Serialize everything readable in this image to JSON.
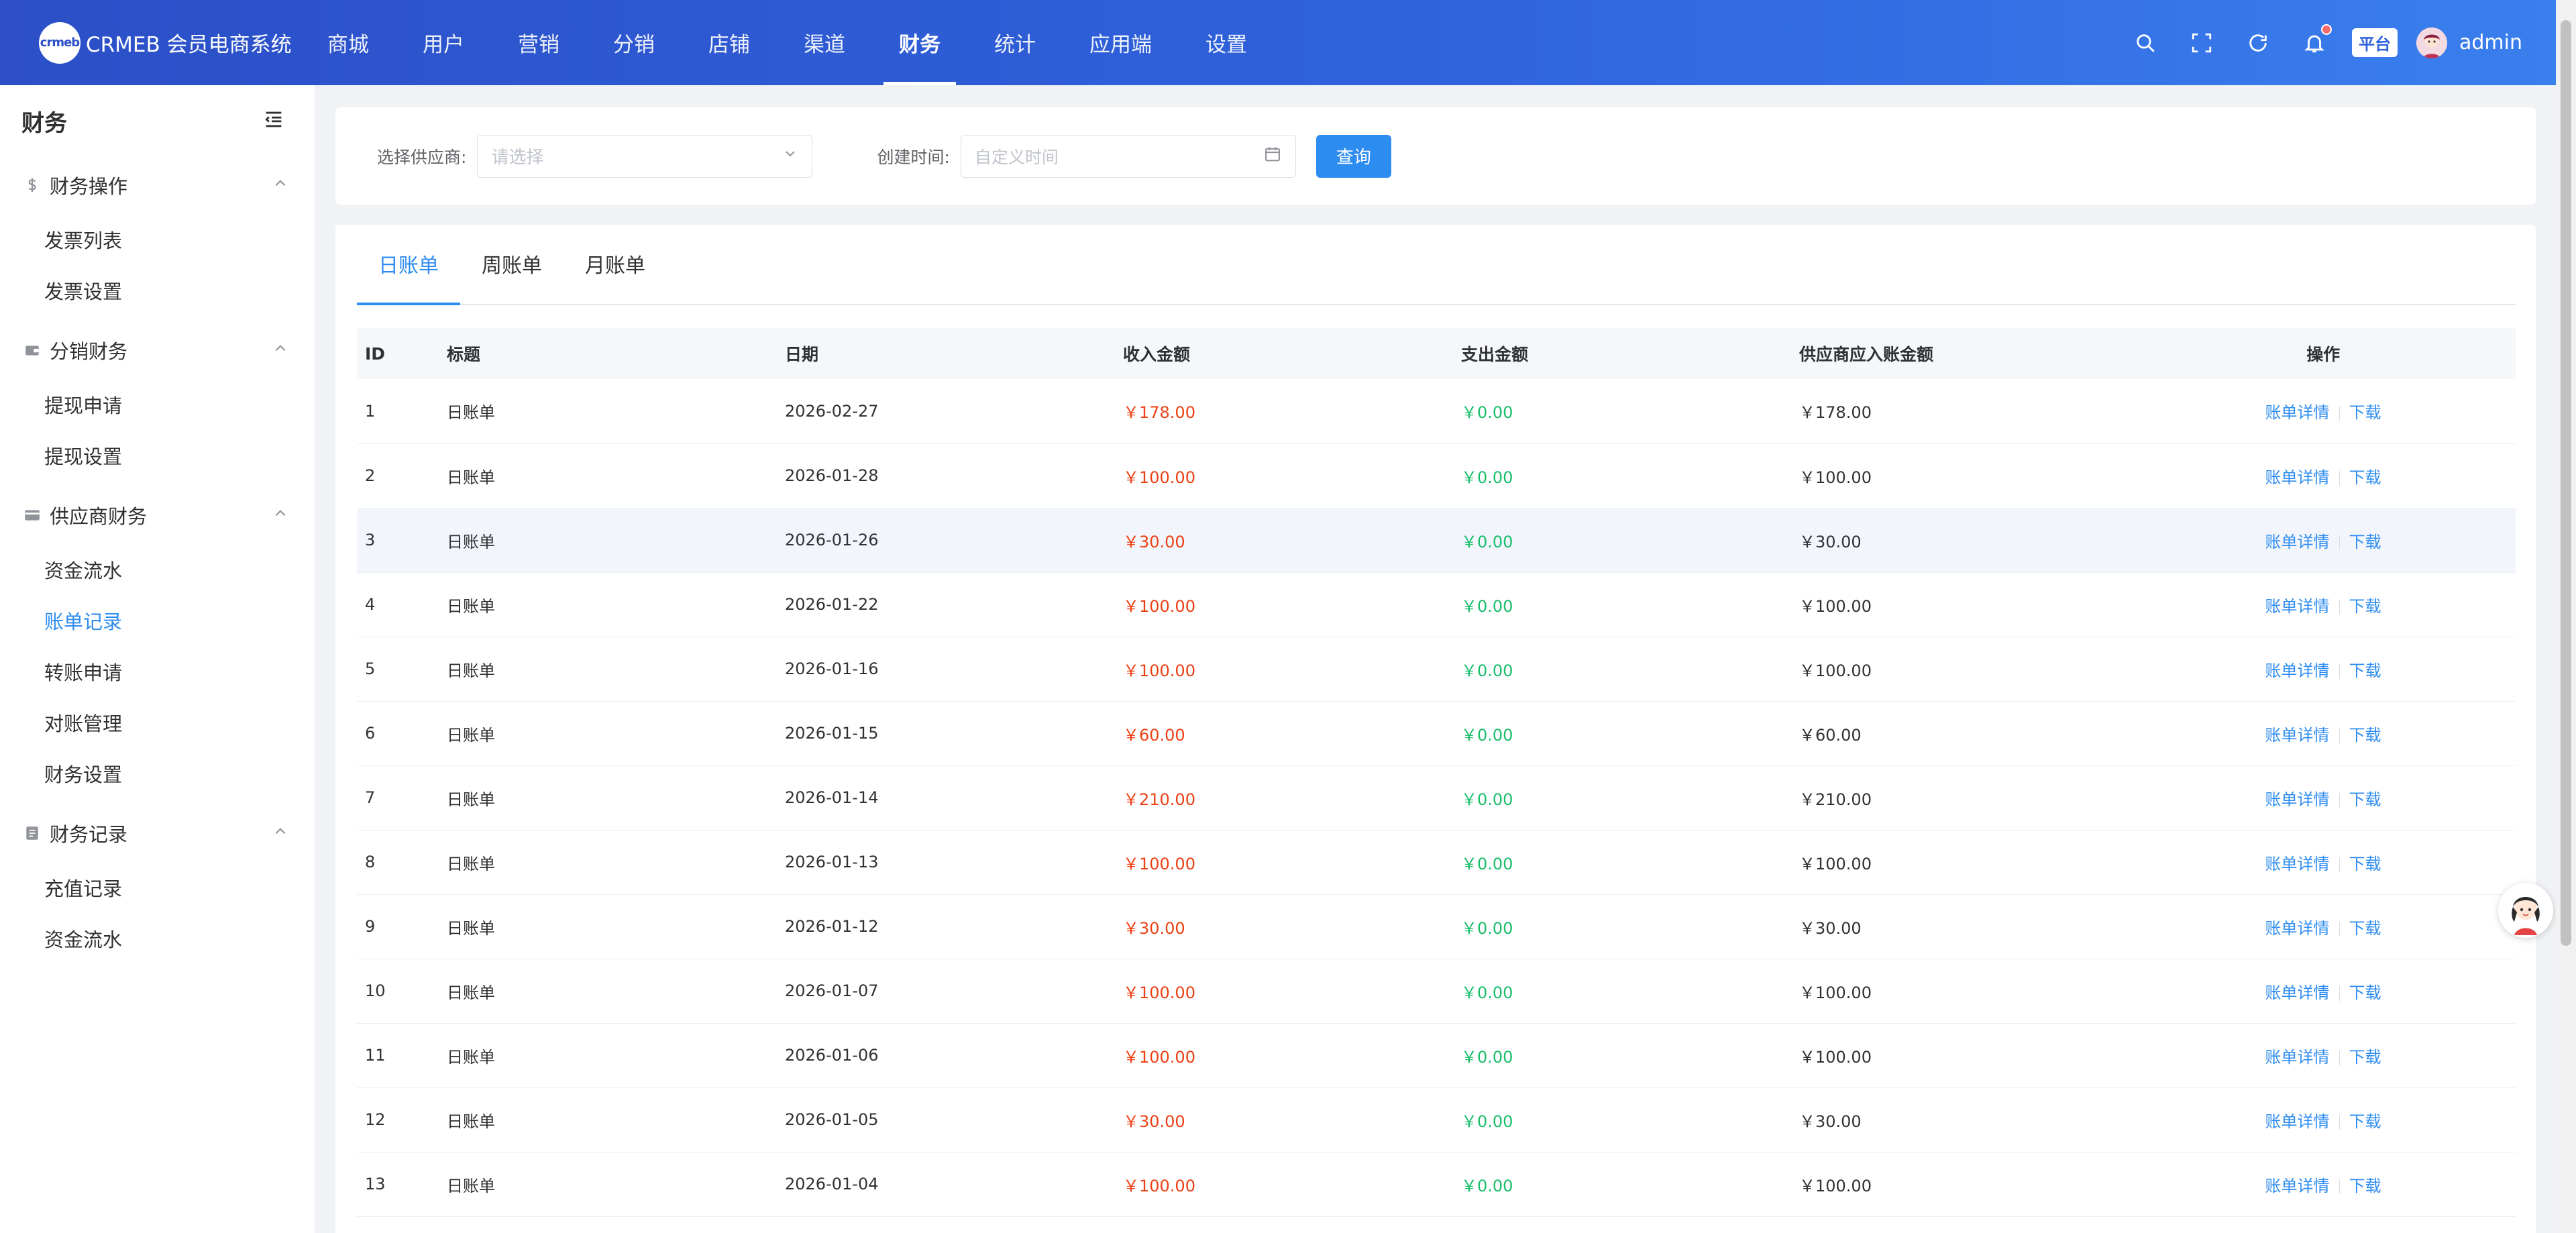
{
  "header": {
    "logo_mark": "crmeb",
    "app_title": "CRMEB 会员电商系统",
    "nav": [
      {
        "label": "商城",
        "name": "nav-mall"
      },
      {
        "label": "用户",
        "name": "nav-user"
      },
      {
        "label": "营销",
        "name": "nav-marketing"
      },
      {
        "label": "分销",
        "name": "nav-distribution"
      },
      {
        "label": "店铺",
        "name": "nav-store"
      },
      {
        "label": "渠道",
        "name": "nav-channel"
      },
      {
        "label": "财务",
        "name": "nav-finance",
        "active": true
      },
      {
        "label": "统计",
        "name": "nav-statistics"
      },
      {
        "label": "应用端",
        "name": "nav-apps"
      },
      {
        "label": "设置",
        "name": "nav-settings"
      }
    ],
    "platform_badge": "平台",
    "user_name": "admin"
  },
  "sidebar": {
    "title": "财务",
    "groups": [
      {
        "title": "财务操作",
        "icon": "dollar-icon",
        "items": [
          "发票列表",
          "发票设置"
        ]
      },
      {
        "title": "分销财务",
        "icon": "wallet-icon",
        "items": [
          "提现申请",
          "提现设置"
        ]
      },
      {
        "title": "供应商财务",
        "icon": "card-icon",
        "items": [
          "资金流水",
          "账单记录",
          "转账申请",
          "对账管理",
          "财务设置"
        ],
        "active_item": "账单记录"
      },
      {
        "title": "财务记录",
        "icon": "ledger-icon",
        "items": [
          "充值记录",
          "资金流水"
        ]
      }
    ]
  },
  "filters": {
    "supplier_label": "选择供应商:",
    "supplier_placeholder": "请选择",
    "time_label": "创建时间:",
    "time_placeholder": "自定义时间",
    "query_button": "查询"
  },
  "tabs": [
    {
      "label": "日账单",
      "active": true
    },
    {
      "label": "周账单"
    },
    {
      "label": "月账单"
    }
  ],
  "table": {
    "columns": [
      "ID",
      "标题",
      "日期",
      "收入金额",
      "支出金额",
      "供应商应入账金额",
      "操作"
    ],
    "actions": {
      "detail": "账单详情",
      "download": "下载"
    },
    "rows": [
      {
        "id": "1",
        "title": "日账单",
        "date": "2026-02-27",
        "income": "￥178.00",
        "expense": "￥0.00",
        "supplier_amount": "￥178.00"
      },
      {
        "id": "2",
        "title": "日账单",
        "date": "2026-01-28",
        "income": "￥100.00",
        "expense": "￥0.00",
        "supplier_amount": "￥100.00"
      },
      {
        "id": "3",
        "title": "日账单",
        "date": "2026-01-26",
        "income": "￥30.00",
        "expense": "￥0.00",
        "supplier_amount": "￥30.00",
        "highlight": true
      },
      {
        "id": "4",
        "title": "日账单",
        "date": "2026-01-22",
        "income": "￥100.00",
        "expense": "￥0.00",
        "supplier_amount": "￥100.00"
      },
      {
        "id": "5",
        "title": "日账单",
        "date": "2026-01-16",
        "income": "￥100.00",
        "expense": "￥0.00",
        "supplier_amount": "￥100.00"
      },
      {
        "id": "6",
        "title": "日账单",
        "date": "2026-01-15",
        "income": "￥60.00",
        "expense": "￥0.00",
        "supplier_amount": "￥60.00"
      },
      {
        "id": "7",
        "title": "日账单",
        "date": "2026-01-14",
        "income": "￥210.00",
        "expense": "￥0.00",
        "supplier_amount": "￥210.00"
      },
      {
        "id": "8",
        "title": "日账单",
        "date": "2026-01-13",
        "income": "￥100.00",
        "expense": "￥0.00",
        "supplier_amount": "￥100.00"
      },
      {
        "id": "9",
        "title": "日账单",
        "date": "2026-01-12",
        "income": "￥30.00",
        "expense": "￥0.00",
        "supplier_amount": "￥30.00"
      },
      {
        "id": "10",
        "title": "日账单",
        "date": "2026-01-07",
        "income": "￥100.00",
        "expense": "￥0.00",
        "supplier_amount": "￥100.00"
      },
      {
        "id": "11",
        "title": "日账单",
        "date": "2026-01-06",
        "income": "￥100.00",
        "expense": "￥0.00",
        "supplier_amount": "￥100.00"
      },
      {
        "id": "12",
        "title": "日账单",
        "date": "2026-01-05",
        "income": "￥30.00",
        "expense": "￥0.00",
        "supplier_amount": "￥30.00"
      },
      {
        "id": "13",
        "title": "日账单",
        "date": "2026-01-04",
        "income": "￥100.00",
        "expense": "￥0.00",
        "supplier_amount": "￥100.00"
      }
    ]
  },
  "colors": {
    "primary": "#2d8cf0",
    "income": "#ed4014",
    "expense": "#19be6b",
    "header_start": "#2c4fc7",
    "header_end": "#3a7fee"
  }
}
